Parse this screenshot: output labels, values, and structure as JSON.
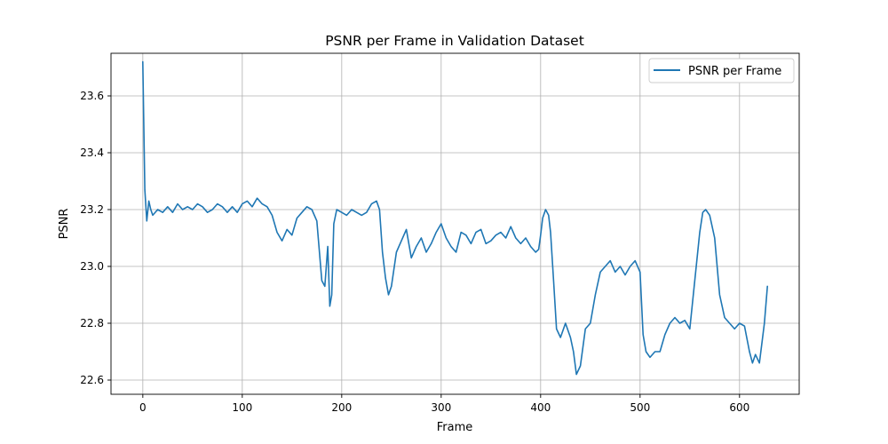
{
  "chart_data": {
    "type": "line",
    "title": "PSNR per Frame in Validation Dataset",
    "xlabel": "Frame",
    "ylabel": "PSNR",
    "xlim": [
      -32,
      660
    ],
    "ylim": [
      22.55,
      23.75
    ],
    "xticks": [
      0,
      100,
      200,
      300,
      400,
      500,
      600
    ],
    "yticks": [
      22.6,
      22.8,
      23.0,
      23.2,
      23.4,
      23.6
    ],
    "ytick_labels": [
      "22.6",
      "22.8",
      "23.0",
      "23.2",
      "23.4",
      "23.6"
    ],
    "grid": true,
    "legend_position": "top-right",
    "color": "#1f77b4",
    "series": [
      {
        "name": "PSNR per Frame",
        "x": [
          0,
          2,
          4,
          6,
          8,
          10,
          15,
          20,
          25,
          30,
          35,
          40,
          45,
          50,
          55,
          60,
          65,
          70,
          75,
          80,
          85,
          90,
          95,
          100,
          105,
          110,
          115,
          120,
          125,
          130,
          135,
          140,
          145,
          150,
          155,
          160,
          165,
          170,
          175,
          180,
          183,
          186,
          188,
          190,
          192,
          195,
          200,
          205,
          210,
          215,
          220,
          225,
          230,
          235,
          238,
          241,
          244,
          247,
          250,
          255,
          260,
          265,
          270,
          275,
          280,
          285,
          290,
          295,
          300,
          305,
          310,
          315,
          320,
          325,
          330,
          335,
          340,
          345,
          350,
          355,
          360,
          365,
          370,
          375,
          380,
          385,
          390,
          395,
          398,
          400,
          402,
          405,
          408,
          410,
          413,
          416,
          420,
          425,
          430,
          433,
          436,
          440,
          445,
          450,
          455,
          460,
          465,
          470,
          475,
          480,
          485,
          490,
          495,
          500,
          503,
          506,
          510,
          515,
          520,
          525,
          530,
          535,
          540,
          545,
          550,
          555,
          560,
          563,
          566,
          570,
          575,
          580,
          585,
          590,
          595,
          600,
          605,
          610,
          613,
          616,
          620,
          625,
          628
        ],
        "values": [
          23.72,
          23.27,
          23.16,
          23.23,
          23.2,
          23.18,
          23.2,
          23.19,
          23.21,
          23.19,
          23.22,
          23.2,
          23.21,
          23.2,
          23.22,
          23.21,
          23.19,
          23.2,
          23.22,
          23.21,
          23.19,
          23.21,
          23.19,
          23.22,
          23.23,
          23.21,
          23.24,
          23.22,
          23.21,
          23.18,
          23.12,
          23.09,
          23.13,
          23.11,
          23.17,
          23.19,
          23.21,
          23.2,
          23.16,
          22.95,
          22.93,
          23.07,
          22.86,
          22.9,
          23.15,
          23.2,
          23.19,
          23.18,
          23.2,
          23.19,
          23.18,
          23.19,
          23.22,
          23.23,
          23.2,
          23.05,
          22.96,
          22.9,
          22.93,
          23.05,
          23.09,
          23.13,
          23.03,
          23.07,
          23.1,
          23.05,
          23.08,
          23.12,
          23.15,
          23.1,
          23.07,
          23.05,
          23.12,
          23.11,
          23.08,
          23.12,
          23.13,
          23.08,
          23.09,
          23.11,
          23.12,
          23.1,
          23.14,
          23.1,
          23.08,
          23.1,
          23.07,
          23.05,
          23.06,
          23.11,
          23.17,
          23.2,
          23.18,
          23.12,
          22.95,
          22.78,
          22.75,
          22.8,
          22.75,
          22.7,
          22.62,
          22.65,
          22.78,
          22.8,
          22.9,
          22.98,
          23.0,
          23.02,
          22.98,
          23.0,
          22.97,
          23.0,
          23.02,
          22.98,
          22.76,
          22.7,
          22.68,
          22.7,
          22.7,
          22.76,
          22.8,
          22.82,
          22.8,
          22.81,
          22.78,
          22.95,
          23.12,
          23.19,
          23.2,
          23.18,
          23.1,
          22.9,
          22.82,
          22.8,
          22.78,
          22.8,
          22.79,
          22.7,
          22.66,
          22.69,
          22.66,
          22.8,
          22.93
        ]
      }
    ]
  }
}
